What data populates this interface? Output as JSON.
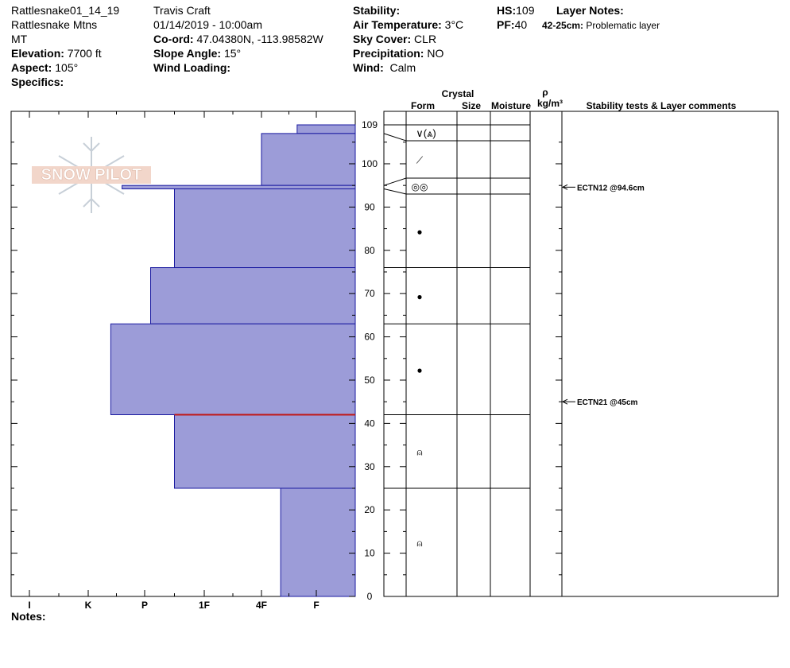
{
  "profile": {
    "name": "Rattlesnake01_14_19",
    "range": "Rattlesnake Mtns",
    "state": "MT",
    "elevation_label": "Elevation:",
    "elevation": "7700 ft",
    "aspect_label": "Aspect:",
    "aspect": "105°",
    "specifics_label": "Specifics:"
  },
  "observer": {
    "name": "Travis  Craft",
    "datetime": "01/14/2019 - 10:00am",
    "coord_label": "Co-ord:",
    "coord": "47.04380N, -113.98582W",
    "slope_label": "Slope Angle:",
    "slope": "15°",
    "wind_loading_label": "Wind Loading:"
  },
  "conditions": {
    "stability_label": "Stability:",
    "air_temp_label": "Air Temperature:",
    "air_temp": "3°C",
    "sky_label": "Sky Cover:",
    "sky": "CLR",
    "precip_label": "Precipitation:",
    "precip": "NO",
    "wind_label": "Wind:",
    "wind": "Calm"
  },
  "summary": {
    "hs_label": "HS:",
    "hs": "109",
    "pf_label": "PF:",
    "pf": "40",
    "layer_notes_label": "Layer Notes:",
    "layer_note_range": "42-25cm:",
    "layer_note_text": "Problematic layer"
  },
  "notes_label": "Notes:",
  "watermark": "SNOW PILOT",
  "table_headers": {
    "crystal": "Crystal",
    "form": "Form",
    "size": "Size",
    "moisture": "Moisture",
    "rho": "ρ",
    "density_unit": "kg/m³",
    "stability": "Stability tests & Layer comments"
  },
  "colors": {
    "layer_fill": "#9c9cd8",
    "layer_stroke": "#1a1aa0",
    "weak_layer": "#c01818"
  },
  "chart_data": {
    "type": "bar",
    "title": "",
    "xlabel": "",
    "ylabel": "",
    "ylim": [
      0,
      109
    ],
    "height_ticks": [
      0,
      10,
      20,
      30,
      40,
      50,
      60,
      70,
      80,
      90,
      100,
      109
    ],
    "hardness_ticks": [
      "I",
      "K",
      "P",
      "1F",
      "4F",
      "F"
    ],
    "layers": [
      {
        "top": 109,
        "bottom": 107,
        "hardness": 0.35,
        "form": "∨(⩓)"
      },
      {
        "top": 107,
        "bottom": 95,
        "hardness": 1.0,
        "form": "⟋"
      },
      {
        "top": 95,
        "bottom": 94.2,
        "hardness": 3.4,
        "form": "◎◎"
      },
      {
        "top": 94.2,
        "bottom": 76,
        "hardness": 2.5,
        "form": "●"
      },
      {
        "top": 76,
        "bottom": 63,
        "hardness": 2.9,
        "form": "●"
      },
      {
        "top": 63,
        "bottom": 42,
        "hardness": 3.6,
        "form": "●"
      },
      {
        "top": 42,
        "bottom": 25,
        "hardness": 2.5,
        "form": "⍝"
      },
      {
        "top": 25,
        "bottom": 0,
        "hardness": 0.65,
        "form": "⍝"
      }
    ],
    "weak_layer_depth": 42,
    "stability_tests": [
      {
        "depth": 94.6,
        "label": "ECTN12 @94.6cm"
      },
      {
        "depth": 45,
        "label": "ECTN21 @45cm"
      }
    ]
  }
}
